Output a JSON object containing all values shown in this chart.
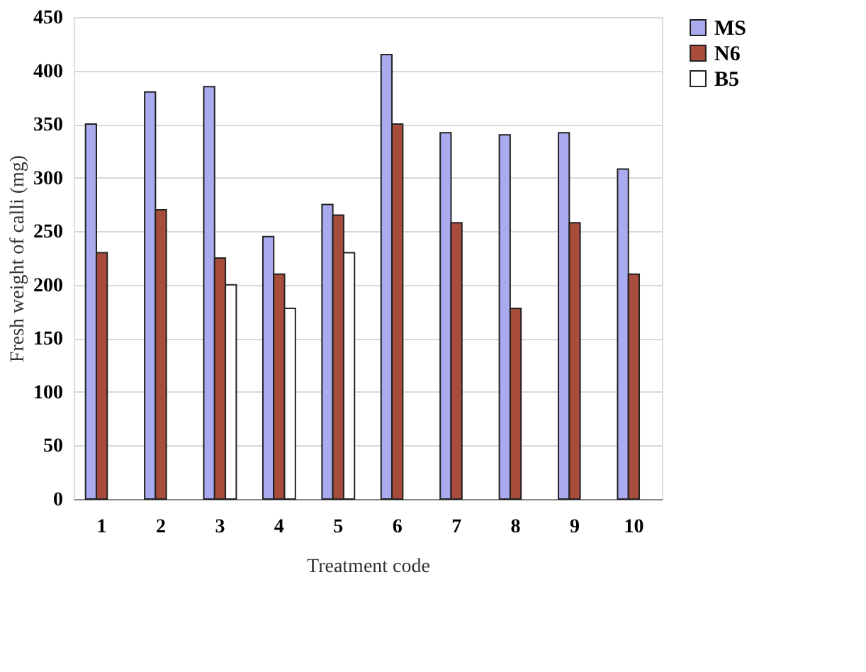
{
  "chart_data": {
    "type": "bar",
    "xlabel": "Treatment code",
    "ylabel": "Fresh weight of calli (mg)",
    "categories": [
      "1",
      "2",
      "3",
      "4",
      "5",
      "6",
      "7",
      "8",
      "9",
      "10"
    ],
    "series": [
      {
        "name": "MS",
        "color": "#aaaaee",
        "values": [
          350,
          380,
          385,
          245,
          275,
          415,
          342,
          340,
          342,
          308
        ]
      },
      {
        "name": "N6",
        "color": "#a84c3c",
        "values": [
          230,
          270,
          225,
          210,
          265,
          350,
          258,
          178,
          258,
          210
        ]
      },
      {
        "name": "B5",
        "color": "#ffffff",
        "values": [
          null,
          null,
          200,
          178,
          230,
          null,
          null,
          null,
          null,
          null
        ]
      }
    ],
    "ylim": [
      0,
      450
    ],
    "yticks": [
      0,
      50,
      100,
      150,
      200,
      250,
      300,
      350,
      400,
      450
    ],
    "grid": "y",
    "legend": "right"
  }
}
